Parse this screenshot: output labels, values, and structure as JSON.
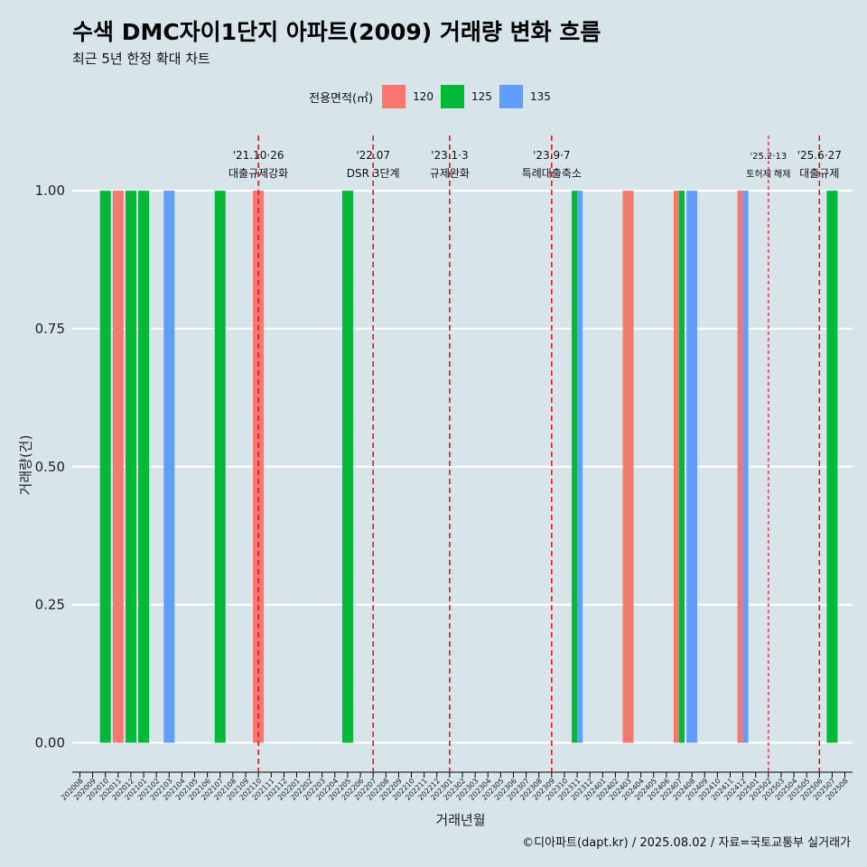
{
  "title": "수색 DMC자이1단지 아파트(2009) 거래량 변화 흐름",
  "subtitle": "최근 5년 한정 확대 차트",
  "caption": "©디아파트(dapt.kr) / 2025.08.02 / 자료=국토교통부 실거래가",
  "chart_data": {
    "type": "bar",
    "title": "수색 DMC자이1단지 아파트(2009) 거래량 변화 흐름",
    "subtitle": "최근 5년 한정 확대 차트",
    "xlabel": "거래년월",
    "ylabel": "거래량(건)",
    "ylim": [
      -0.05,
      1.1
    ],
    "yticks": [
      0,
      0.25,
      0.5,
      0.75,
      1
    ],
    "ytick_labels": [
      "0.00",
      "0.25",
      "0.50",
      "0.75",
      "1.00"
    ],
    "grid": true,
    "legend": {
      "title": "전용면적(㎡)",
      "position": "top"
    },
    "categories": [
      "202008",
      "202009",
      "202010",
      "202011",
      "202012",
      "202101",
      "202102",
      "202103",
      "202104",
      "202105",
      "202106",
      "202107",
      "202108",
      "202109",
      "202110",
      "202111",
      "202112",
      "202201",
      "202202",
      "202203",
      "202204",
      "202205",
      "202206",
      "202207",
      "202208",
      "202209",
      "202210",
      "202211",
      "202212",
      "202301",
      "202302",
      "202303",
      "202304",
      "202305",
      "202306",
      "202307",
      "202308",
      "202309",
      "202310",
      "202311",
      "202312",
      "202401",
      "202402",
      "202403",
      "202404",
      "202405",
      "202406",
      "202407",
      "202408",
      "202409",
      "202410",
      "202411",
      "202412",
      "202501",
      "202502",
      "202503",
      "202504",
      "202505",
      "202506",
      "202507",
      "202508"
    ],
    "series": [
      {
        "name": "120",
        "color": "#F8766D",
        "points": [
          {
            "x": "202011",
            "y": 1
          },
          {
            "x": "202110",
            "y": 1
          },
          {
            "x": "202403",
            "y": 1
          },
          {
            "x": "202407",
            "y": 1
          },
          {
            "x": "202412",
            "y": 1
          }
        ]
      },
      {
        "name": "125",
        "color": "#00BA38",
        "points": [
          {
            "x": "202010",
            "y": 1
          },
          {
            "x": "202012",
            "y": 1
          },
          {
            "x": "202101",
            "y": 1
          },
          {
            "x": "202107",
            "y": 1
          },
          {
            "x": "202205",
            "y": 1
          },
          {
            "x": "202311",
            "y": 1
          },
          {
            "x": "202407",
            "y": 1
          },
          {
            "x": "202507",
            "y": 1
          }
        ]
      },
      {
        "name": "135",
        "color": "#619CFF",
        "points": [
          {
            "x": "202103",
            "y": 1
          },
          {
            "x": "202311",
            "y": 1
          },
          {
            "x": "202408",
            "y": 1
          },
          {
            "x": "202412",
            "y": 1
          }
        ]
      }
    ],
    "events": [
      {
        "x": "202110",
        "date": "'21.10·26",
        "label": "대출규제강화",
        "small": false
      },
      {
        "x": "202207",
        "date": "'22.07",
        "label": "DSR 3단계",
        "small": false
      },
      {
        "x": "202301",
        "date": "'23.1·3",
        "label": "규제완화",
        "small": false
      },
      {
        "x": "202309",
        "date": "'23.9·7",
        "label": "특례대출축소",
        "small": false
      },
      {
        "x": "202502",
        "date": "'25.2·13",
        "label": "토허제 해제",
        "small": true
      },
      {
        "x": "202506",
        "date": "'25.6·27",
        "label": "대출규제",
        "small": false
      }
    ]
  }
}
